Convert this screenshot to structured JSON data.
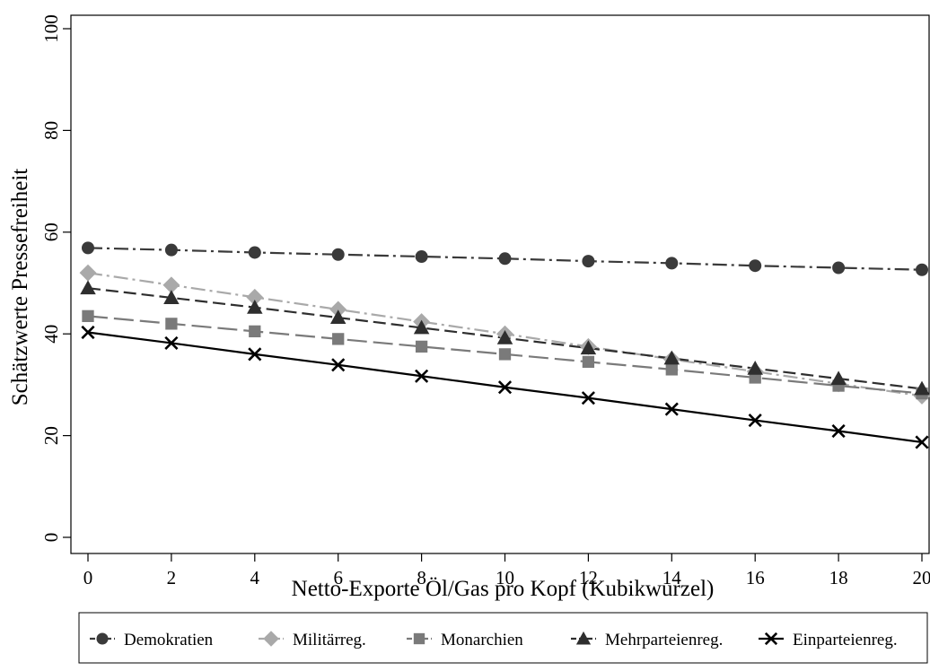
{
  "chart_data": {
    "type": "line",
    "title": "",
    "xlabel": "Netto-Exporte Öl/Gas pro Kopf (Kubikwurzel)",
    "ylabel": "Schätzwerte Pressefreiheit",
    "x": [
      0,
      2,
      4,
      6,
      8,
      10,
      12,
      14,
      16,
      18,
      20
    ],
    "xticks": [
      "0",
      "2",
      "4",
      "6",
      "8",
      "10",
      "12",
      "14",
      "16",
      "18",
      "20"
    ],
    "yticks": [
      "0",
      "20",
      "40",
      "60",
      "80",
      "100"
    ],
    "xlim": [
      0,
      20
    ],
    "ylim": [
      0,
      100
    ],
    "grid": false,
    "legend_position": "bottom",
    "series": [
      {
        "name": "Demokratien",
        "marker": "circle",
        "line_style": "dash-dot",
        "color": "#3a3a3a",
        "values": [
          56.9,
          56.5,
          56.0,
          55.6,
          55.2,
          54.8,
          54.3,
          53.9,
          53.4,
          53.0,
          52.6
        ]
      },
      {
        "name": "Militärreg.",
        "marker": "diamond",
        "line_style": "dash-dot",
        "color": "#a9a9a9",
        "values": [
          52.0,
          49.6,
          47.2,
          44.8,
          42.4,
          40.0,
          37.5,
          35.0,
          32.6,
          30.2,
          27.8
        ]
      },
      {
        "name": "Monarchien",
        "marker": "square",
        "line_style": "long-dash",
        "color": "#7a7a7a",
        "values": [
          43.5,
          42.0,
          40.5,
          39.0,
          37.5,
          36.0,
          34.5,
          33.0,
          31.4,
          29.8,
          28.3
        ]
      },
      {
        "name": "Mehrparteienreg.",
        "marker": "triangle",
        "line_style": "dash",
        "color": "#2e2e2e",
        "values": [
          49.0,
          47.1,
          45.2,
          43.2,
          41.2,
          39.2,
          37.2,
          35.2,
          33.2,
          31.2,
          29.2
        ]
      },
      {
        "name": "Einparteienreg.",
        "marker": "x",
        "line_style": "solid",
        "color": "#000000",
        "values": [
          40.3,
          38.2,
          36.0,
          33.9,
          31.7,
          29.5,
          27.4,
          25.2,
          23.0,
          20.9,
          18.7
        ]
      }
    ]
  }
}
